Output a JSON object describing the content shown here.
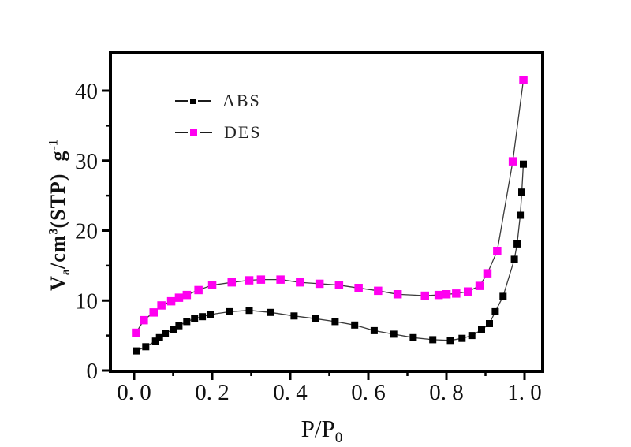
{
  "chart_data": {
    "type": "line",
    "title": "",
    "subtitle": "",
    "xlabel": "P/P0",
    "ylabel": "Va/cm3(STP) g-1",
    "xlabel_rich": [
      {
        "t": "P/P"
      },
      {
        "t": "0",
        "sub": true
      }
    ],
    "ylabel_rich": [
      {
        "t": "V"
      },
      {
        "t": "a",
        "sub": true
      },
      {
        "t": "/cm"
      },
      {
        "t": "3",
        "sup": true
      },
      {
        "t": "(STP)  g"
      },
      {
        "t": "-1",
        "sup": true
      }
    ],
    "xlim": [
      -0.06,
      1.046
    ],
    "ylim": [
      -0.2,
      45.4
    ],
    "grid": false,
    "legend_position": "upper-left-inside",
    "background_color": "#ffffff",
    "frame_color": "#000000",
    "x_axis": {
      "major_ticks": [
        0.0,
        0.2,
        0.4,
        0.6,
        0.8,
        1.0
      ],
      "major_labels": [
        "0. 0",
        "0. 2",
        "0. 4",
        "0. 6",
        "0. 8",
        "1. 0"
      ],
      "minor_ticks": [
        0.1,
        0.3,
        0.5,
        0.7,
        0.9
      ]
    },
    "y_axis": {
      "major_ticks": [
        0,
        10,
        20,
        30,
        40
      ],
      "major_labels": [
        "0",
        "10",
        "20",
        "30",
        "40"
      ],
      "minor_ticks": [
        5,
        15,
        25,
        35
      ]
    },
    "series": [
      {
        "name": "ABS",
        "marker": "square",
        "marker_color": "#000000",
        "line_color": "#3a3a3a",
        "marker_size": 9,
        "points": [
          [
            0.005,
            2.8
          ],
          [
            0.03,
            3.4
          ],
          [
            0.055,
            4.2
          ],
          [
            0.065,
            4.7
          ],
          [
            0.08,
            5.3
          ],
          [
            0.1,
            5.9
          ],
          [
            0.115,
            6.4
          ],
          [
            0.135,
            7.0
          ],
          [
            0.155,
            7.4
          ],
          [
            0.175,
            7.7
          ],
          [
            0.195,
            8.0
          ],
          [
            0.245,
            8.4
          ],
          [
            0.295,
            8.6
          ],
          [
            0.35,
            8.3
          ],
          [
            0.41,
            7.8
          ],
          [
            0.465,
            7.4
          ],
          [
            0.515,
            7.0
          ],
          [
            0.565,
            6.5
          ],
          [
            0.615,
            5.7
          ],
          [
            0.665,
            5.2
          ],
          [
            0.715,
            4.7
          ],
          [
            0.765,
            4.4
          ],
          [
            0.81,
            4.3
          ],
          [
            0.84,
            4.6
          ],
          [
            0.865,
            5.0
          ],
          [
            0.89,
            5.8
          ],
          [
            0.91,
            6.7
          ],
          [
            0.925,
            8.4
          ],
          [
            0.945,
            10.6
          ],
          [
            0.974,
            15.9
          ],
          [
            0.981,
            18.1
          ],
          [
            0.989,
            22.2
          ],
          [
            0.993,
            25.5
          ],
          [
            0.997,
            29.5
          ]
        ]
      },
      {
        "name": "DES",
        "marker": "square",
        "marker_color": "#ff00f0",
        "line_color": "#3a3a3a",
        "marker_size": 10.5,
        "points": [
          [
            0.005,
            5.4
          ],
          [
            0.025,
            7.2
          ],
          [
            0.05,
            8.3
          ],
          [
            0.07,
            9.3
          ],
          [
            0.095,
            9.9
          ],
          [
            0.115,
            10.4
          ],
          [
            0.135,
            10.8
          ],
          [
            0.165,
            11.5
          ],
          [
            0.2,
            12.2
          ],
          [
            0.25,
            12.6
          ],
          [
            0.295,
            12.9
          ],
          [
            0.325,
            13.0
          ],
          [
            0.375,
            13.0
          ],
          [
            0.425,
            12.6
          ],
          [
            0.475,
            12.4
          ],
          [
            0.525,
            12.2
          ],
          [
            0.575,
            11.8
          ],
          [
            0.625,
            11.4
          ],
          [
            0.675,
            10.9
          ],
          [
            0.745,
            10.7
          ],
          [
            0.78,
            10.8
          ],
          [
            0.8,
            10.9
          ],
          [
            0.825,
            11.0
          ],
          [
            0.855,
            11.3
          ],
          [
            0.885,
            12.1
          ],
          [
            0.905,
            13.9
          ],
          [
            0.93,
            17.1
          ],
          [
            0.97,
            29.9
          ],
          [
            0.997,
            41.5
          ]
        ]
      }
    ]
  }
}
